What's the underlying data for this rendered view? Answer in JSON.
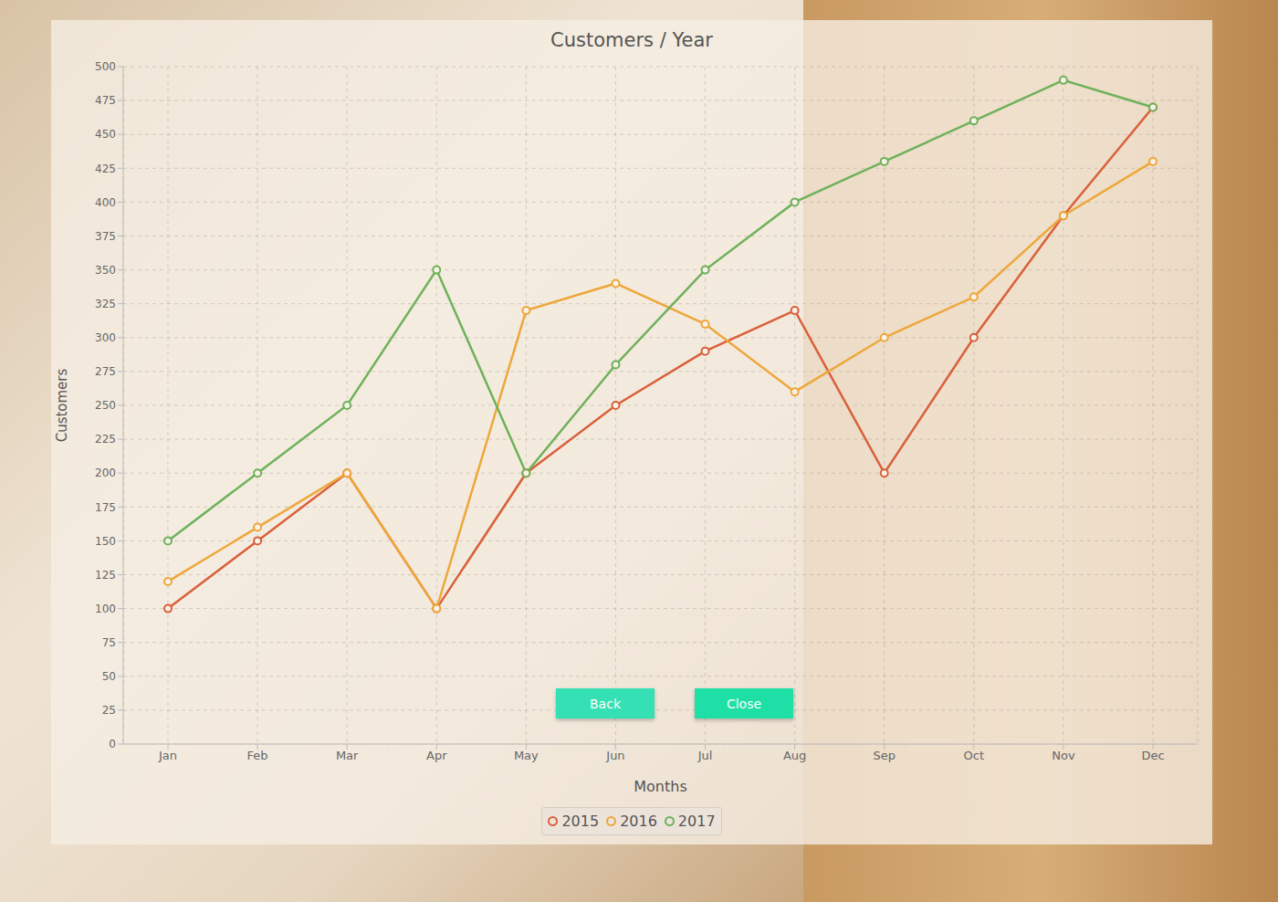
{
  "chart_data": {
    "type": "line",
    "title": "Customers / Year",
    "x_label": "Months",
    "y_label": "Customers",
    "categories": [
      "Jan",
      "Feb",
      "Mar",
      "Apr",
      "May",
      "Jun",
      "Jul",
      "Aug",
      "Sep",
      "Oct",
      "Nov",
      "Dec"
    ],
    "series": [
      {
        "name": "2015",
        "color": "#d9603b",
        "values": [
          100,
          150,
          200,
          100,
          200,
          250,
          290,
          320,
          200,
          300,
          390,
          470
        ]
      },
      {
        "name": "2016",
        "color": "#eea73a",
        "values": [
          120,
          160,
          200,
          100,
          320,
          340,
          310,
          260,
          300,
          330,
          390,
          430
        ]
      },
      {
        "name": "2017",
        "color": "#6fb15a",
        "values": [
          150,
          200,
          250,
          350,
          200,
          280,
          350,
          400,
          430,
          460,
          490,
          470
        ]
      }
    ],
    "ylim": [
      0,
      500
    ],
    "yticks": [
      0,
      25,
      50,
      75,
      100,
      125,
      150,
      175,
      200,
      225,
      250,
      275,
      300,
      325,
      350,
      375,
      400,
      425,
      450,
      475,
      500
    ],
    "grid": true,
    "legend": "bottom",
    "marker": "circle",
    "annotations": [
      "Back",
      "Close"
    ]
  }
}
